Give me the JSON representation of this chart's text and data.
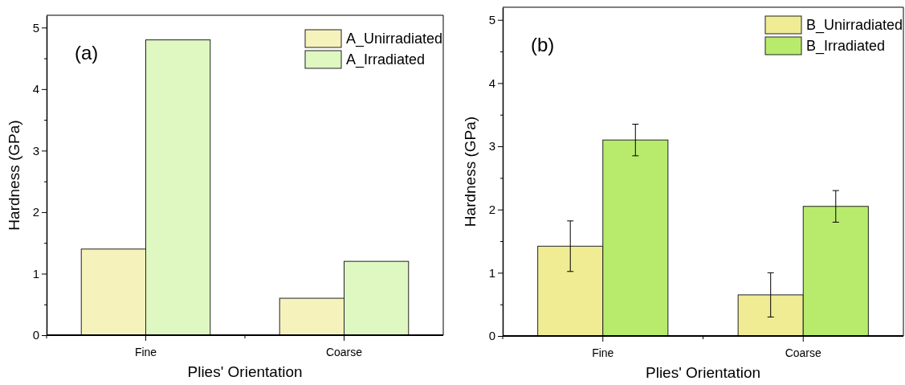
{
  "chart_data": [
    {
      "type": "bar",
      "xlabel": "Plies' Orientation",
      "ylabel": "Hardness (GPa)",
      "annotations": [
        "(a)"
      ],
      "categories": [
        "Fine",
        "Coarse"
      ],
      "series": [
        {
          "name": "A_Unirradiated",
          "color": "#f5f2bc",
          "values": [
            1.4,
            0.6
          ]
        },
        {
          "name": "A_Irradiated",
          "color": "#dff7c0",
          "values": [
            4.8,
            1.2
          ]
        }
      ],
      "ylim": [
        0,
        5.2
      ],
      "yticks": [
        0,
        {
          "value": 0.5,
          "label": null
        },
        1,
        {
          "value": 1.5,
          "label": null
        },
        2,
        {
          "value": 2.5,
          "label": null
        },
        3,
        {
          "value": 3.5,
          "label": null
        },
        4,
        {
          "value": 4.5,
          "label": null
        },
        5
      ],
      "grid": false,
      "legend": "top right"
    },
    {
      "type": "bar",
      "xlabel": "Plies' Orientation",
      "ylabel": "Hardness (GPa)",
      "annotations": [
        "(b)"
      ],
      "categories": [
        "Fine",
        "Coarse"
      ],
      "series": [
        {
          "name": "B_Unirradiated",
          "color": "#f0ec94",
          "values": [
            1.42,
            0.65
          ],
          "errors": [
            0.4,
            0.35
          ]
        },
        {
          "name": "B_Irradiated",
          "color": "#b8eb6c",
          "values": [
            3.1,
            2.05
          ],
          "errors": [
            0.25,
            0.25
          ]
        }
      ],
      "ylim": [
        0,
        5.2
      ],
      "yticks": [
        0,
        {
          "value": 0.5,
          "label": null
        },
        1,
        {
          "value": 1.5,
          "label": null
        },
        2,
        {
          "value": 2.5,
          "label": null
        },
        3,
        {
          "value": 3.5,
          "label": null
        },
        4,
        {
          "value": 4.5,
          "label": null
        },
        5
      ],
      "grid": false,
      "legend": "top right"
    }
  ]
}
